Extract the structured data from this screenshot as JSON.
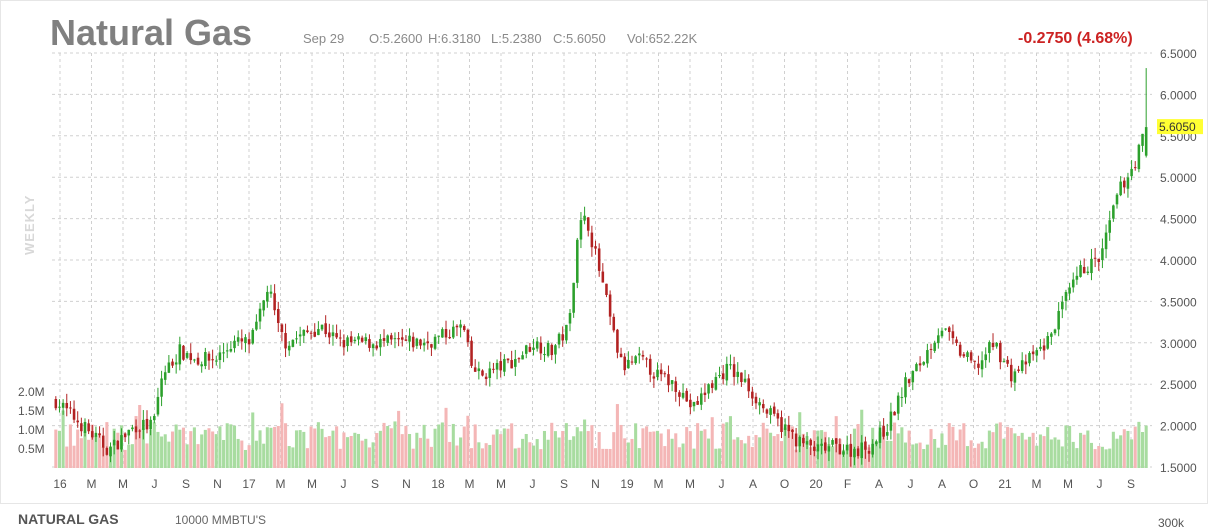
{
  "header": {
    "title": "Natural Gas",
    "date": "Sep 29",
    "open": "O:5.2600",
    "high": "H:6.3180",
    "low": "L:5.2380",
    "close": "C:5.6050",
    "volume": "Vol:652.22K",
    "change": "-0.2750 (4.68%)",
    "period_label": "WEEKLY"
  },
  "footer": {
    "name": "NATURAL GAS",
    "unit": "10000 MMBTU'S",
    "volume_scale": "300k"
  },
  "colors": {
    "up": "#2ca02c",
    "down": "#b22222",
    "vol_up": "#a8dca0",
    "vol_down": "#f4b6b6",
    "grid": "#d0d0d0",
    "last_price_bg": "#ffff33"
  },
  "chart_data": {
    "type": "candlestick",
    "title": "Natural Gas",
    "y_ticks": [
      "6.5000",
      "6.0000",
      "5.5000",
      "5.0000",
      "4.5000",
      "4.0000",
      "3.5000",
      "3.0000",
      "2.5000",
      "2.0000",
      "1.5000"
    ],
    "ylim": [
      1.5,
      6.5
    ],
    "volume_ticks": [
      "2.0M",
      "1.5M",
      "1.0M",
      "0.5M"
    ],
    "x_tick_labels": [
      "16",
      "M",
      "M",
      "J",
      "S",
      "N",
      "17",
      "M",
      "M",
      "J",
      "S",
      "N",
      "18",
      "M",
      "M",
      "J",
      "S",
      "N",
      "19",
      "M",
      "M",
      "J",
      "A",
      "O",
      "20",
      "F",
      "A",
      "J",
      "A",
      "O",
      "21",
      "M",
      "M",
      "J",
      "S"
    ],
    "last_price": "5.6050",
    "last": {
      "open": 5.26,
      "high": 6.318,
      "low": 5.238,
      "close": 5.605
    },
    "price_path": [
      [
        0,
        2.3
      ],
      [
        1.5,
        2.0
      ],
      [
        3,
        1.7
      ],
      [
        4.5,
        2.0
      ],
      [
        5.5,
        2.0
      ],
      [
        6,
        2.6
      ],
      [
        7,
        2.9
      ],
      [
        8,
        2.8
      ],
      [
        9,
        2.8
      ],
      [
        10,
        3.0
      ],
      [
        11,
        3.0
      ],
      [
        11.5,
        3.3
      ],
      [
        12,
        3.7
      ],
      [
        12.5,
        3.2
      ],
      [
        13,
        3.0
      ],
      [
        14,
        3.1
      ],
      [
        15,
        3.2
      ],
      [
        16,
        3.0
      ],
      [
        17,
        3.0
      ],
      [
        18,
        3.0
      ],
      [
        19,
        3.0
      ],
      [
        20,
        3.0
      ],
      [
        21,
        3.0
      ],
      [
        22,
        3.1
      ],
      [
        23,
        3.2
      ],
      [
        23.5,
        2.7
      ],
      [
        24,
        2.6
      ],
      [
        25,
        2.7
      ],
      [
        26,
        2.8
      ],
      [
        27,
        3.0
      ],
      [
        28,
        2.9
      ],
      [
        29,
        3.2
      ],
      [
        29.5,
        4.4
      ],
      [
        30,
        4.5
      ],
      [
        31,
        3.6
      ],
      [
        31.5,
        3.1
      ],
      [
        32,
        2.7
      ],
      [
        33,
        2.8
      ],
      [
        34,
        2.6
      ],
      [
        35,
        2.5
      ],
      [
        36,
        2.2
      ],
      [
        37,
        2.5
      ],
      [
        38,
        2.7
      ],
      [
        39,
        2.5
      ],
      [
        40,
        2.2
      ],
      [
        41,
        2.0
      ],
      [
        42,
        1.8
      ],
      [
        43,
        1.7
      ],
      [
        44,
        1.75
      ],
      [
        45,
        1.7
      ],
      [
        46,
        1.75
      ],
      [
        47,
        2.0
      ],
      [
        48,
        2.5
      ],
      [
        49,
        2.8
      ],
      [
        50,
        3.2
      ],
      [
        51,
        2.9
      ],
      [
        52,
        2.7
      ],
      [
        53,
        3.0
      ],
      [
        54,
        2.6
      ],
      [
        55,
        2.8
      ],
      [
        56,
        3.0
      ],
      [
        57,
        3.5
      ],
      [
        58,
        3.9
      ],
      [
        59,
        4.0
      ],
      [
        60,
        4.8
      ],
      [
        61,
        5.2
      ],
      [
        61.6,
        5.605
      ]
    ]
  }
}
